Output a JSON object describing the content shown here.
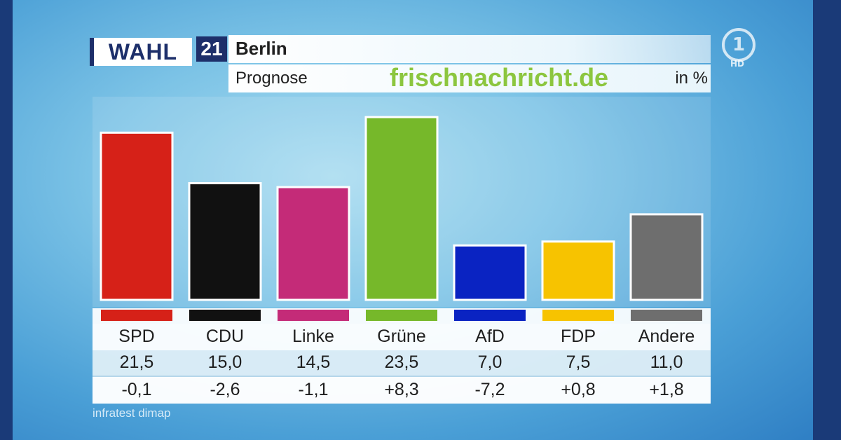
{
  "header": {
    "logo_text": "WAHL",
    "logo_number": "21",
    "title": "Berlin",
    "subtitle": "Prognose",
    "unit": "in %",
    "watermark": "frischnachricht.de",
    "broadcaster_logo": "1",
    "broadcaster_badge": "HD"
  },
  "chart_data": {
    "type": "bar",
    "title": "Berlin",
    "subtitle": "Prognose",
    "ylabel": "in %",
    "ylim": [
      0,
      25
    ],
    "categories": [
      "SPD",
      "CDU",
      "Linke",
      "Grüne",
      "AfD",
      "FDP",
      "Andere"
    ],
    "values": [
      21.5,
      15.0,
      14.5,
      23.5,
      7.0,
      7.5,
      11.0
    ],
    "value_labels": [
      "21,5",
      "15,0",
      "14,5",
      "23,5",
      "7,0",
      "7,5",
      "11,0"
    ],
    "changes": [
      "-0,1",
      "-2,6",
      "-1,1",
      "+8,3",
      "-7,2",
      "+0,8",
      "+1,8"
    ],
    "colors": [
      "#d62118",
      "#111111",
      "#c42b78",
      "#76b82a",
      "#0a23c2",
      "#f7c300",
      "#6e6e6e"
    ]
  },
  "source": "infratest dimap"
}
